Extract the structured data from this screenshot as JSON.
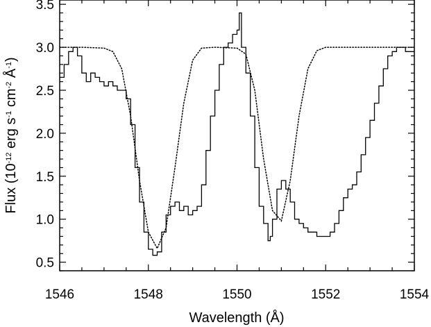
{
  "chart_data": {
    "type": "line",
    "xlabel": "Wavelength (Å)",
    "ylabel": {
      "prefix": "Flux (10",
      "exp1": "-12",
      "t1": " erg s",
      "exp2": "-1",
      "t2": " cm",
      "exp3": "-2",
      "t3": " Å",
      "exp4": "-1",
      "suffix": ")"
    },
    "xlim": [
      1546,
      1554
    ],
    "ylim": [
      0.4,
      3.55
    ],
    "x_ticks": [
      1546,
      1548,
      1550,
      1552,
      1554
    ],
    "x_tick_labels": [
      "1546",
      "1548",
      "1550",
      "1552",
      "1554"
    ],
    "y_ticks": [
      0.5,
      1.0,
      1.5,
      2.0,
      2.5,
      3.0,
      3.5
    ],
    "y_tick_labels": [
      "0.5",
      "1.0",
      "1.5",
      "2.0",
      "2.5",
      "3.0",
      "3.5"
    ],
    "grid": false,
    "legend": "none",
    "series": [
      {
        "style": "histogram",
        "color": "#000000",
        "x": [
          1546.0,
          1546.1,
          1546.2,
          1546.3,
          1546.4,
          1546.5,
          1546.6,
          1546.7,
          1546.8,
          1546.9,
          1547.0,
          1547.1,
          1547.2,
          1547.3,
          1547.4,
          1547.5,
          1547.6,
          1547.7,
          1547.8,
          1547.9,
          1548.0,
          1548.1,
          1548.2,
          1548.3,
          1548.4,
          1548.5,
          1548.6,
          1548.7,
          1548.8,
          1548.9,
          1549.0,
          1549.1,
          1549.2,
          1549.3,
          1549.4,
          1549.5,
          1549.6,
          1549.7,
          1549.8,
          1549.9,
          1550.0,
          1550.05,
          1550.1,
          1550.2,
          1550.3,
          1550.4,
          1550.5,
          1550.6,
          1550.7,
          1550.75,
          1550.8,
          1550.9,
          1551.0,
          1551.1,
          1551.2,
          1551.3,
          1551.4,
          1551.5,
          1551.6,
          1551.7,
          1551.8,
          1551.9,
          1552.0,
          1552.1,
          1552.2,
          1552.3,
          1552.4,
          1552.5,
          1552.6,
          1552.7,
          1552.8,
          1552.9,
          1553.0,
          1553.1,
          1553.2,
          1553.3,
          1553.4,
          1553.5,
          1553.6,
          1553.7,
          1553.8,
          1553.9,
          1554.0
        ],
        "y": [
          2.65,
          2.8,
          2.95,
          3.0,
          2.9,
          2.7,
          2.6,
          2.7,
          2.65,
          2.6,
          2.55,
          2.6,
          2.55,
          2.5,
          2.5,
          2.4,
          2.1,
          1.6,
          1.2,
          0.85,
          0.65,
          0.58,
          0.62,
          0.85,
          1.05,
          1.15,
          1.2,
          1.1,
          1.15,
          1.05,
          1.1,
          1.15,
          1.4,
          1.8,
          2.2,
          2.5,
          2.8,
          3.0,
          3.05,
          3.15,
          3.2,
          3.4,
          3.0,
          2.7,
          2.2,
          1.6,
          1.15,
          0.95,
          0.75,
          0.8,
          1.0,
          1.35,
          1.45,
          1.35,
          1.2,
          1.0,
          0.95,
          0.9,
          0.85,
          0.85,
          0.8,
          0.8,
          0.8,
          0.85,
          0.95,
          1.1,
          1.25,
          1.35,
          1.4,
          1.55,
          1.75,
          1.95,
          2.15,
          2.35,
          2.55,
          2.75,
          2.9,
          2.95,
          3.0,
          3.0,
          2.95,
          2.95,
          2.95
        ]
      },
      {
        "style": "dotted",
        "color": "#000000",
        "x": [
          1546.0,
          1546.5,
          1547.0,
          1547.2,
          1547.4,
          1547.6,
          1547.8,
          1548.0,
          1548.2,
          1548.4,
          1548.6,
          1548.8,
          1549.0,
          1549.2,
          1549.5,
          1550.0,
          1550.2,
          1550.4,
          1550.6,
          1550.8,
          1551.0,
          1551.2,
          1551.4,
          1551.6,
          1551.8,
          1552.0,
          1552.5,
          1553.0,
          1553.5,
          1554.0
        ],
        "y": [
          3.0,
          3.0,
          2.99,
          2.95,
          2.75,
          2.2,
          1.45,
          0.85,
          0.66,
          0.9,
          1.6,
          2.35,
          2.85,
          2.99,
          3.0,
          2.99,
          2.92,
          2.5,
          1.7,
          1.1,
          0.98,
          1.45,
          2.2,
          2.75,
          2.96,
          3.0,
          3.0,
          3.0,
          3.0,
          3.0
        ]
      }
    ]
  }
}
